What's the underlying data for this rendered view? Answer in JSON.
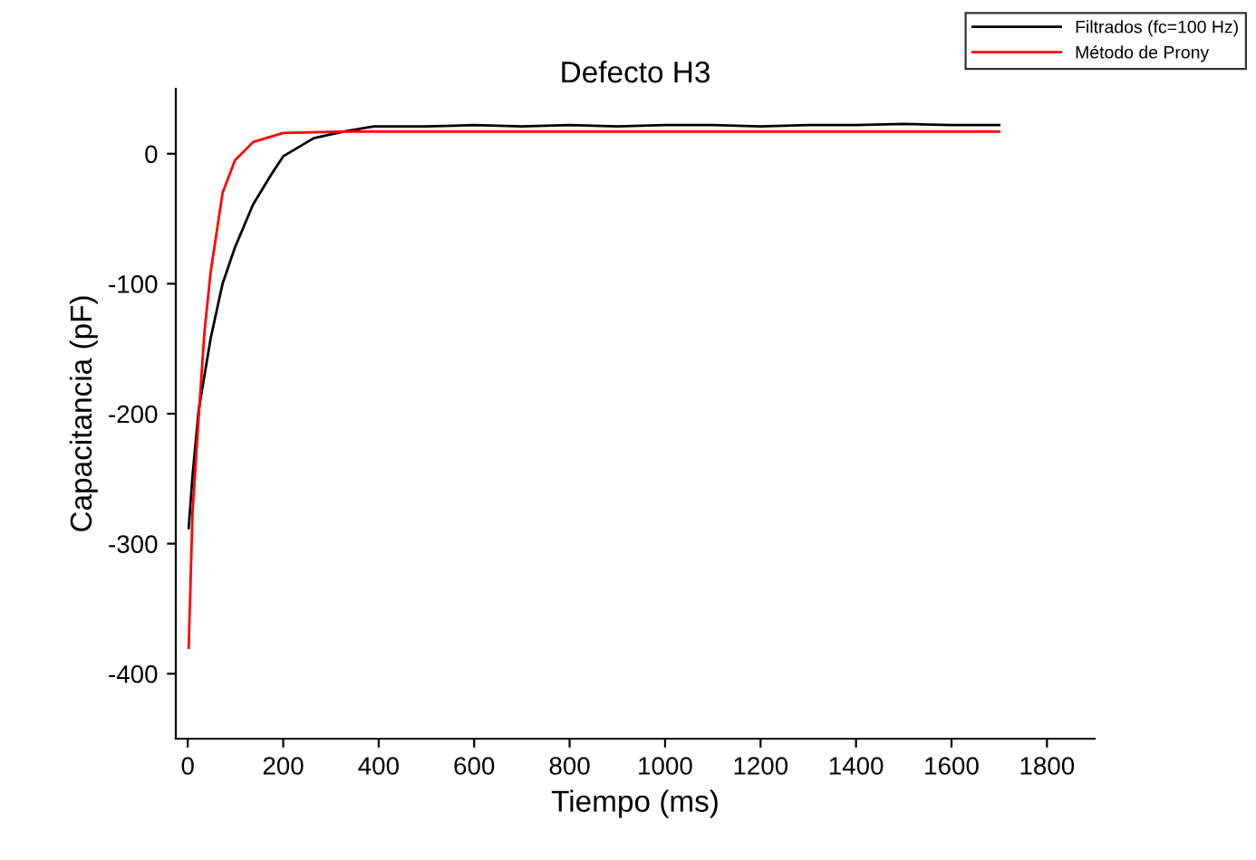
{
  "chart_data": {
    "type": "line",
    "title": "Defecto H3",
    "xlabel": "Tiempo (ms)",
    "ylabel": "Capacitancia (pF)",
    "xlim": [
      -25,
      1900
    ],
    "xticks": [
      0,
      200,
      400,
      600,
      800,
      1000,
      1200,
      1400,
      1600,
      1800
    ],
    "ylim": [
      -450,
      50
    ],
    "yticks": [
      -400,
      -300,
      -200,
      -100,
      0
    ],
    "grid": false,
    "legend": "top right",
    "marker": "none",
    "line_style": "solid",
    "series": [
      {
        "name": "Filtrados (fc=100 Hz)",
        "color": "#000000",
        "x": [
          2,
          10,
          23,
          48,
          73,
          99,
          137,
          175,
          200,
          264,
          326,
          390,
          500,
          600,
          700,
          800,
          900,
          1000,
          1100,
          1200,
          1300,
          1400,
          1500,
          1600,
          1700
        ],
        "values": [
          -288,
          -248,
          -197,
          -142,
          -100,
          -72,
          -39,
          -16,
          -2,
          12,
          17,
          21,
          21,
          22,
          21,
          22,
          21,
          22,
          22,
          21,
          22,
          22,
          23,
          22,
          22
        ]
      },
      {
        "name": "Método de Prony",
        "color": "#ff0000",
        "x": [
          2,
          10,
          23,
          35,
          48,
          73,
          99,
          137,
          200,
          326,
          1700
        ],
        "values": [
          -380,
          -276,
          -202,
          -137,
          -91,
          -30,
          -5,
          9,
          16,
          17,
          17
        ]
      }
    ]
  }
}
